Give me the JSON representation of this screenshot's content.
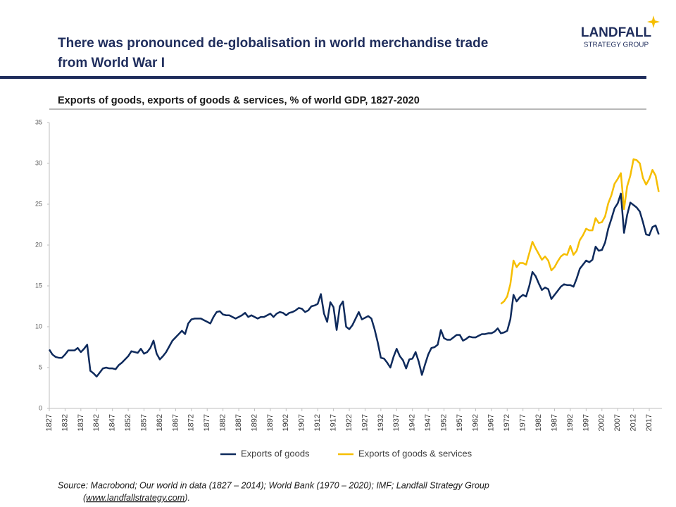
{
  "chart_data": {
    "type": "line",
    "title_lines": [
      "There was pronounced de-globalisation in world merchandise trade",
      "from World War I"
    ],
    "subtitle": "Exports of goods, exports of goods & services, % of world GDP, 1827-2020",
    "logo": {
      "name": "LANDFALL",
      "tagline": "STRATEGY GROUP"
    },
    "source": [
      "Source: Macrobond; Our world in data (1827 – 2014); World Bank (1970 – 2020); IMF; Landfall Strategy Group",
      "(",
      "www.landfallstrategy.com",
      ")."
    ],
    "x": [
      1827,
      1828,
      1829,
      1830,
      1831,
      1832,
      1833,
      1834,
      1835,
      1836,
      1837,
      1838,
      1839,
      1840,
      1841,
      1842,
      1843,
      1844,
      1845,
      1846,
      1847,
      1848,
      1849,
      1850,
      1851,
      1852,
      1853,
      1854,
      1855,
      1856,
      1857,
      1858,
      1859,
      1860,
      1861,
      1862,
      1863,
      1864,
      1865,
      1866,
      1867,
      1868,
      1869,
      1870,
      1871,
      1872,
      1873,
      1874,
      1875,
      1876,
      1877,
      1878,
      1879,
      1880,
      1881,
      1882,
      1883,
      1884,
      1885,
      1886,
      1887,
      1888,
      1889,
      1890,
      1891,
      1892,
      1893,
      1894,
      1895,
      1896,
      1897,
      1898,
      1899,
      1900,
      1901,
      1902,
      1903,
      1904,
      1905,
      1906,
      1907,
      1908,
      1909,
      1910,
      1911,
      1912,
      1913,
      1914,
      1915,
      1916,
      1917,
      1918,
      1919,
      1920,
      1921,
      1922,
      1923,
      1924,
      1925,
      1926,
      1927,
      1928,
      1929,
      1930,
      1931,
      1932,
      1933,
      1934,
      1935,
      1936,
      1937,
      1938,
      1939,
      1940,
      1941,
      1942,
      1943,
      1944,
      1945,
      1946,
      1947,
      1948,
      1949,
      1950,
      1951,
      1952,
      1953,
      1954,
      1955,
      1956,
      1957,
      1958,
      1959,
      1960,
      1961,
      1962,
      1963,
      1964,
      1965,
      1966,
      1967,
      1968,
      1969,
      1970,
      1971,
      1972,
      1973,
      1974,
      1975,
      1976,
      1977,
      1978,
      1979,
      1980,
      1981,
      1982,
      1983,
      1984,
      1985,
      1986,
      1987,
      1988,
      1989,
      1990,
      1991,
      1992,
      1993,
      1994,
      1995,
      1996,
      1997,
      1998,
      1999,
      2000,
      2001,
      2002,
      2003,
      2004,
      2005,
      2006,
      2007,
      2008,
      2009,
      2010,
      2011,
      2012,
      2013,
      2014,
      2015,
      2016,
      2017,
      2018,
      2019,
      2020
    ],
    "series": [
      {
        "name": "Exports of goods",
        "color": "#0e2a5c",
        "values": [
          7.2,
          6.6,
          6.3,
          6.2,
          6.2,
          6.6,
          7.1,
          7.1,
          7.1,
          7.4,
          6.9,
          7.3,
          7.8,
          4.6,
          4.3,
          3.9,
          4.4,
          4.9,
          5.0,
          4.9,
          4.9,
          4.8,
          5.3,
          5.6,
          6.0,
          6.4,
          7.0,
          6.9,
          6.8,
          7.3,
          6.7,
          6.9,
          7.4,
          8.3,
          6.7,
          6.0,
          6.4,
          6.9,
          7.6,
          8.3,
          8.7,
          9.1,
          9.5,
          9.1,
          10.4,
          10.9,
          11.0,
          11.0,
          11.0,
          10.8,
          10.6,
          10.4,
          11.2,
          11.8,
          11.9,
          11.5,
          11.4,
          11.4,
          11.2,
          11.0,
          11.2,
          11.4,
          11.7,
          11.2,
          11.4,
          11.2,
          11.0,
          11.2,
          11.2,
          11.4,
          11.6,
          11.2,
          11.6,
          11.8,
          11.7,
          11.4,
          11.7,
          11.8,
          12.0,
          12.3,
          12.2,
          11.8,
          12.0,
          12.5,
          12.6,
          12.8,
          14.0,
          11.6,
          10.6,
          13.0,
          12.4,
          9.6,
          12.5,
          13.1,
          10.0,
          9.7,
          10.2,
          11.0,
          11.8,
          10.9,
          11.1,
          11.3,
          11.0,
          9.7,
          8.1,
          6.2,
          6.1,
          5.6,
          5.0,
          6.3,
          7.3,
          6.4,
          5.9,
          4.9,
          6.0,
          6.1,
          6.9,
          5.7,
          4.1,
          5.4,
          6.6,
          7.4,
          7.5,
          7.8,
          9.6,
          8.6,
          8.4,
          8.4,
          8.7,
          9.0,
          9.0,
          8.3,
          8.5,
          8.8,
          8.7,
          8.7,
          8.9,
          9.1,
          9.1,
          9.2,
          9.2,
          9.4,
          9.8,
          9.2,
          9.3,
          9.5,
          10.9,
          13.9,
          13.1,
          13.6,
          13.9,
          13.7,
          15.0,
          16.7,
          16.2,
          15.3,
          14.5,
          14.8,
          14.6,
          13.4,
          13.9,
          14.4,
          14.9,
          15.2,
          15.1,
          15.1,
          14.9,
          15.9,
          17.1,
          17.6,
          18.1,
          17.9,
          18.2,
          19.8,
          19.3,
          19.4,
          20.3,
          22.0,
          23.2,
          24.5,
          25.1,
          26.3,
          21.5,
          23.7,
          25.2,
          24.9,
          24.6,
          24.1,
          22.8,
          21.3,
          21.2,
          22.2,
          22.4,
          21.3
        ]
      },
      {
        "name": "Exports of goods & services",
        "color": "#f6be00",
        "values": [
          null,
          null,
          null,
          null,
          null,
          null,
          null,
          null,
          null,
          null,
          null,
          null,
          null,
          null,
          null,
          null,
          null,
          null,
          null,
          null,
          null,
          null,
          null,
          null,
          null,
          null,
          null,
          null,
          null,
          null,
          null,
          null,
          null,
          null,
          null,
          null,
          null,
          null,
          null,
          null,
          null,
          null,
          null,
          null,
          null,
          null,
          null,
          null,
          null,
          null,
          null,
          null,
          null,
          null,
          null,
          null,
          null,
          null,
          null,
          null,
          null,
          null,
          null,
          null,
          null,
          null,
          null,
          null,
          null,
          null,
          null,
          null,
          null,
          null,
          null,
          null,
          null,
          null,
          null,
          null,
          null,
          null,
          null,
          null,
          null,
          null,
          null,
          null,
          null,
          null,
          null,
          null,
          null,
          null,
          null,
          null,
          null,
          null,
          null,
          null,
          null,
          null,
          null,
          null,
          null,
          null,
          null,
          null,
          null,
          null,
          null,
          null,
          null,
          null,
          null,
          null,
          null,
          null,
          null,
          null,
          null,
          null,
          null,
          null,
          null,
          null,
          null,
          null,
          null,
          null,
          null,
          null,
          null,
          null,
          null,
          null,
          null,
          null,
          null,
          null,
          null,
          null,
          null,
          12.8,
          13.1,
          13.7,
          15.2,
          18.1,
          17.3,
          17.8,
          17.8,
          17.6,
          19.0,
          20.4,
          19.6,
          18.9,
          18.2,
          18.6,
          18.1,
          16.9,
          17.3,
          18.0,
          18.6,
          18.9,
          18.8,
          19.9,
          18.8,
          19.3,
          20.6,
          21.2,
          22.0,
          21.8,
          21.8,
          23.3,
          22.7,
          22.8,
          23.5,
          25.1,
          26.1,
          27.5,
          28.1,
          28.8,
          24.4,
          27.2,
          28.5,
          30.5,
          30.4,
          30.0,
          28.2,
          27.4,
          28.1,
          29.2,
          28.5,
          26.5
        ]
      }
    ],
    "xlim": [
      1827,
      2021
    ],
    "xticks": [
      1827,
      1832,
      1837,
      1842,
      1847,
      1852,
      1857,
      1862,
      1867,
      1872,
      1877,
      1882,
      1887,
      1892,
      1897,
      1902,
      1907,
      1912,
      1917,
      1922,
      1927,
      1932,
      1937,
      1942,
      1947,
      1952,
      1957,
      1962,
      1967,
      1972,
      1977,
      1982,
      1987,
      1992,
      1997,
      2002,
      2007,
      2012,
      2017
    ],
    "ylim": [
      0,
      35
    ],
    "yticks": [
      0,
      5,
      10,
      15,
      20,
      25,
      30,
      35
    ],
    "grid": false,
    "legend": "bottom"
  }
}
